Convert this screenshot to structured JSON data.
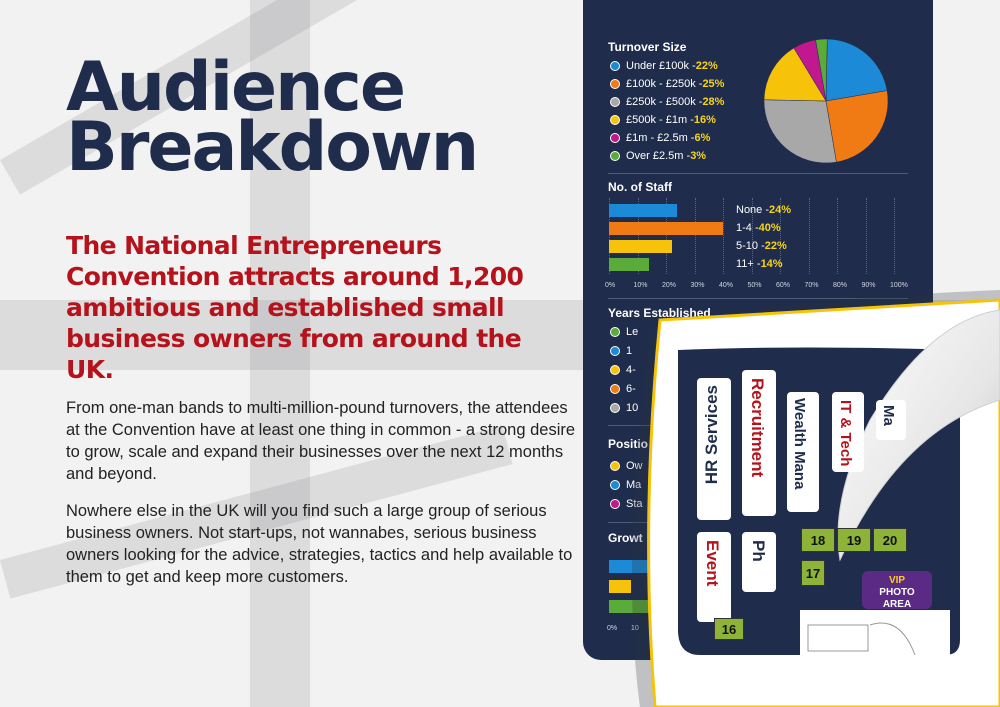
{
  "heading": {
    "line1": "Audience",
    "line2": "Breakdown"
  },
  "lead": "The National Entrepreneurs Convention attracts around 1,200 ambitious and established small business owners from around the UK.",
  "paragraphs": [
    "From one-man bands to multi-million-pound turnovers, the attendees at the Convention have at least one thing in common - a strong desire to grow, scale and expand their businesses over the next 12 months and beyond.",
    "Nowhere else in the UK will you find such a large group of serious business owners. Not start-ups, not wannabes, serious business owners looking for the advice, strategies, tactics and help available to them to get and keep more customers."
  ],
  "colors": {
    "navy": "#1f2c4c",
    "red": "#b5121b",
    "yellow": "#f7d417",
    "blue": "#1c8ad6",
    "orange": "#f07a14",
    "grey": "#a8a8a8",
    "gold": "#f7c30a",
    "magenta": "#c2188f",
    "green": "#5aab3a"
  },
  "turnover": {
    "title": "Turnover Size",
    "items": [
      {
        "label": "Under £100k - ",
        "pct": "22%",
        "value": 22,
        "color": "#1c8ad6"
      },
      {
        "label": "£100k - £250k - ",
        "pct": "25%",
        "value": 25,
        "color": "#f07a14"
      },
      {
        "label": "£250k - £500k - ",
        "pct": "28%",
        "value": 28,
        "color": "#a8a8a8"
      },
      {
        "label": "£500k - £1m - ",
        "pct": "16%",
        "value": 16,
        "color": "#f7c30a"
      },
      {
        "label": "£1m - £2.5m - ",
        "pct": "6%",
        "value": 6,
        "color": "#c2188f"
      },
      {
        "label": "Over £2.5m - ",
        "pct": "3%",
        "value": 3,
        "color": "#5aab3a"
      }
    ]
  },
  "staff": {
    "title": "No. of Staff",
    "items": [
      {
        "label": "None - ",
        "pct": "24%",
        "value": 24,
        "color": "#1c8ad6"
      },
      {
        "label": "1-4 - ",
        "pct": "40%",
        "value": 40,
        "color": "#f07a14"
      },
      {
        "label": "5-10 - ",
        "pct": "22%",
        "value": 22,
        "color": "#f7c30a"
      },
      {
        "label": "11+ - ",
        "pct": "14%",
        "value": 14,
        "color": "#5aab3a"
      }
    ],
    "ticks": [
      "0%",
      "10%",
      "20%",
      "30%",
      "40%",
      "50%",
      "60%",
      "70%",
      "80%",
      "90%",
      "100%"
    ]
  },
  "years": {
    "title": "Years Established",
    "partial": [
      "Le",
      "1",
      "4-",
      "6-",
      "10"
    ]
  },
  "position": {
    "title": "Positio",
    "partial": [
      "Ow",
      "Ma",
      "Sta"
    ]
  },
  "growth": {
    "title": "Growt",
    "ticks": [
      "0%",
      "10"
    ]
  },
  "floorplan": {
    "labels": [
      "HR Services",
      "Recruitment",
      "Wealth Mana",
      "IT & Tech",
      "Ma",
      "Event",
      "Ph"
    ],
    "booths": [
      "18",
      "19",
      "20",
      "17",
      "16"
    ],
    "vip": {
      "line1": "VIP",
      "line2": "PHOTO",
      "line3": "AREA"
    }
  }
}
